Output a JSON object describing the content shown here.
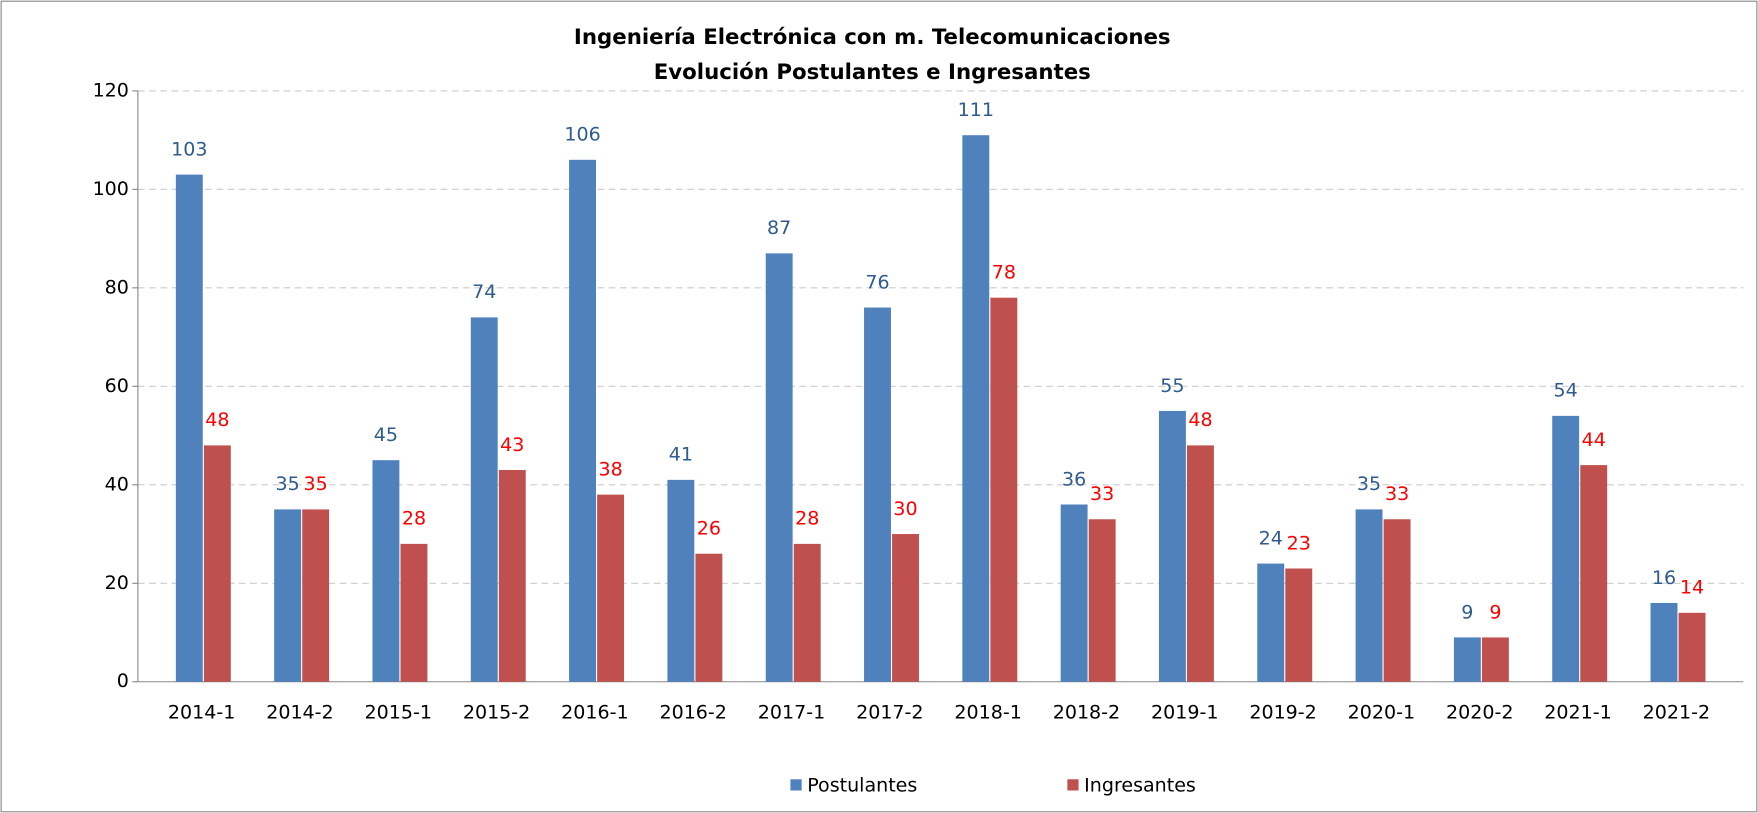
{
  "chart_data": {
    "type": "bar",
    "title": "Ingeniería Electrónica con m. Telecomunicaciones",
    "subtitle": "Evolución Postulantes e Ingresantes",
    "categories": [
      "2014-1",
      "2014-2",
      "2015-1",
      "2015-2",
      "2016-1",
      "2016-2",
      "2017-1",
      "2017-2",
      "2018-1",
      "2018-2",
      "2019-1",
      "2019-2",
      "2020-1",
      "2020-2",
      "2021-1",
      "2021-2"
    ],
    "series": [
      {
        "name": "Postulantes",
        "color": "#4f81bd",
        "label_color": "#2f5b8e",
        "values": [
          103,
          35,
          45,
          74,
          106,
          41,
          87,
          76,
          111,
          36,
          55,
          24,
          35,
          9,
          54,
          16
        ]
      },
      {
        "name": "Ingresantes",
        "color": "#c0504d",
        "label_color": "#ff0000",
        "values": [
          48,
          35,
          28,
          43,
          38,
          26,
          28,
          30,
          78,
          33,
          48,
          23,
          33,
          9,
          44,
          14
        ]
      }
    ],
    "ylim": [
      0,
      120
    ],
    "yticks": [
      0,
      20,
      40,
      60,
      80,
      100,
      120
    ],
    "grid": true,
    "legend": "bottom"
  }
}
